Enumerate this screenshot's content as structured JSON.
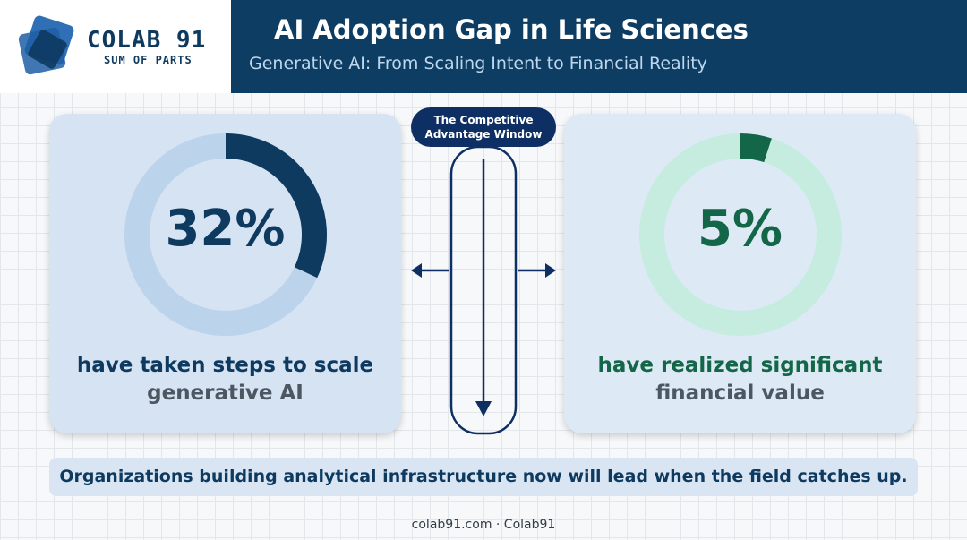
{
  "brand": {
    "name": "COLAB 91",
    "tagline": "SUM OF PARTS"
  },
  "header": {
    "title": "AI Adoption Gap in Life Sciences",
    "subtitle": "Generative AI: From Scaling Intent to Financial Reality"
  },
  "center": {
    "pill_line1": "The Competitive",
    "pill_line2": "Advantage Window"
  },
  "stats": [
    {
      "value": "32%",
      "fraction": 0.32,
      "line1": "have taken steps to scale",
      "line2": "generative AI",
      "ring_color": "#0e3a5f",
      "track_color": "#bcd3ec"
    },
    {
      "value": "5%",
      "fraction": 0.05,
      "line1": "have realized significant",
      "line2": "financial value",
      "ring_color": "#136647",
      "track_color": "#c5ecdf"
    }
  ],
  "banner": "Organizations building analytical infrastructure now will lead when the field catches up.",
  "footer": "colab91.com · Colab91",
  "colors": {
    "navy": "#0d3d63",
    "green": "#136647",
    "pill": "#0e2f63"
  }
}
